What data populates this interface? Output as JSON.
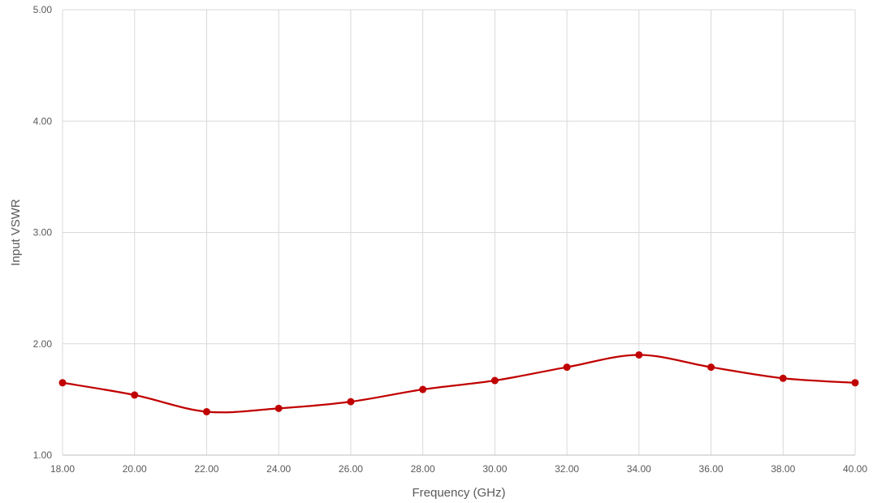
{
  "chart_data": {
    "type": "line",
    "title": "",
    "xlabel": "Frequency (GHz)",
    "ylabel": "Input VSWR",
    "xlim": [
      18,
      40
    ],
    "ylim": [
      1,
      5
    ],
    "x_ticks": [
      "18.00",
      "20.00",
      "22.00",
      "24.00",
      "26.00",
      "28.00",
      "30.00",
      "32.00",
      "34.00",
      "36.00",
      "38.00",
      "40.00"
    ],
    "y_ticks": [
      "1.00",
      "2.00",
      "3.00",
      "4.00",
      "5.00"
    ],
    "grid": true,
    "legend": "none",
    "series": [
      {
        "color": "#c00000",
        "smooth": true,
        "markers": true,
        "x": [
          18,
          20,
          22,
          24,
          26,
          28,
          30,
          32,
          34,
          36,
          38,
          40
        ],
        "y": [
          1.65,
          1.54,
          1.39,
          1.42,
          1.48,
          1.59,
          1.67,
          1.79,
          1.9,
          1.79,
          1.69,
          1.65
        ]
      }
    ]
  }
}
